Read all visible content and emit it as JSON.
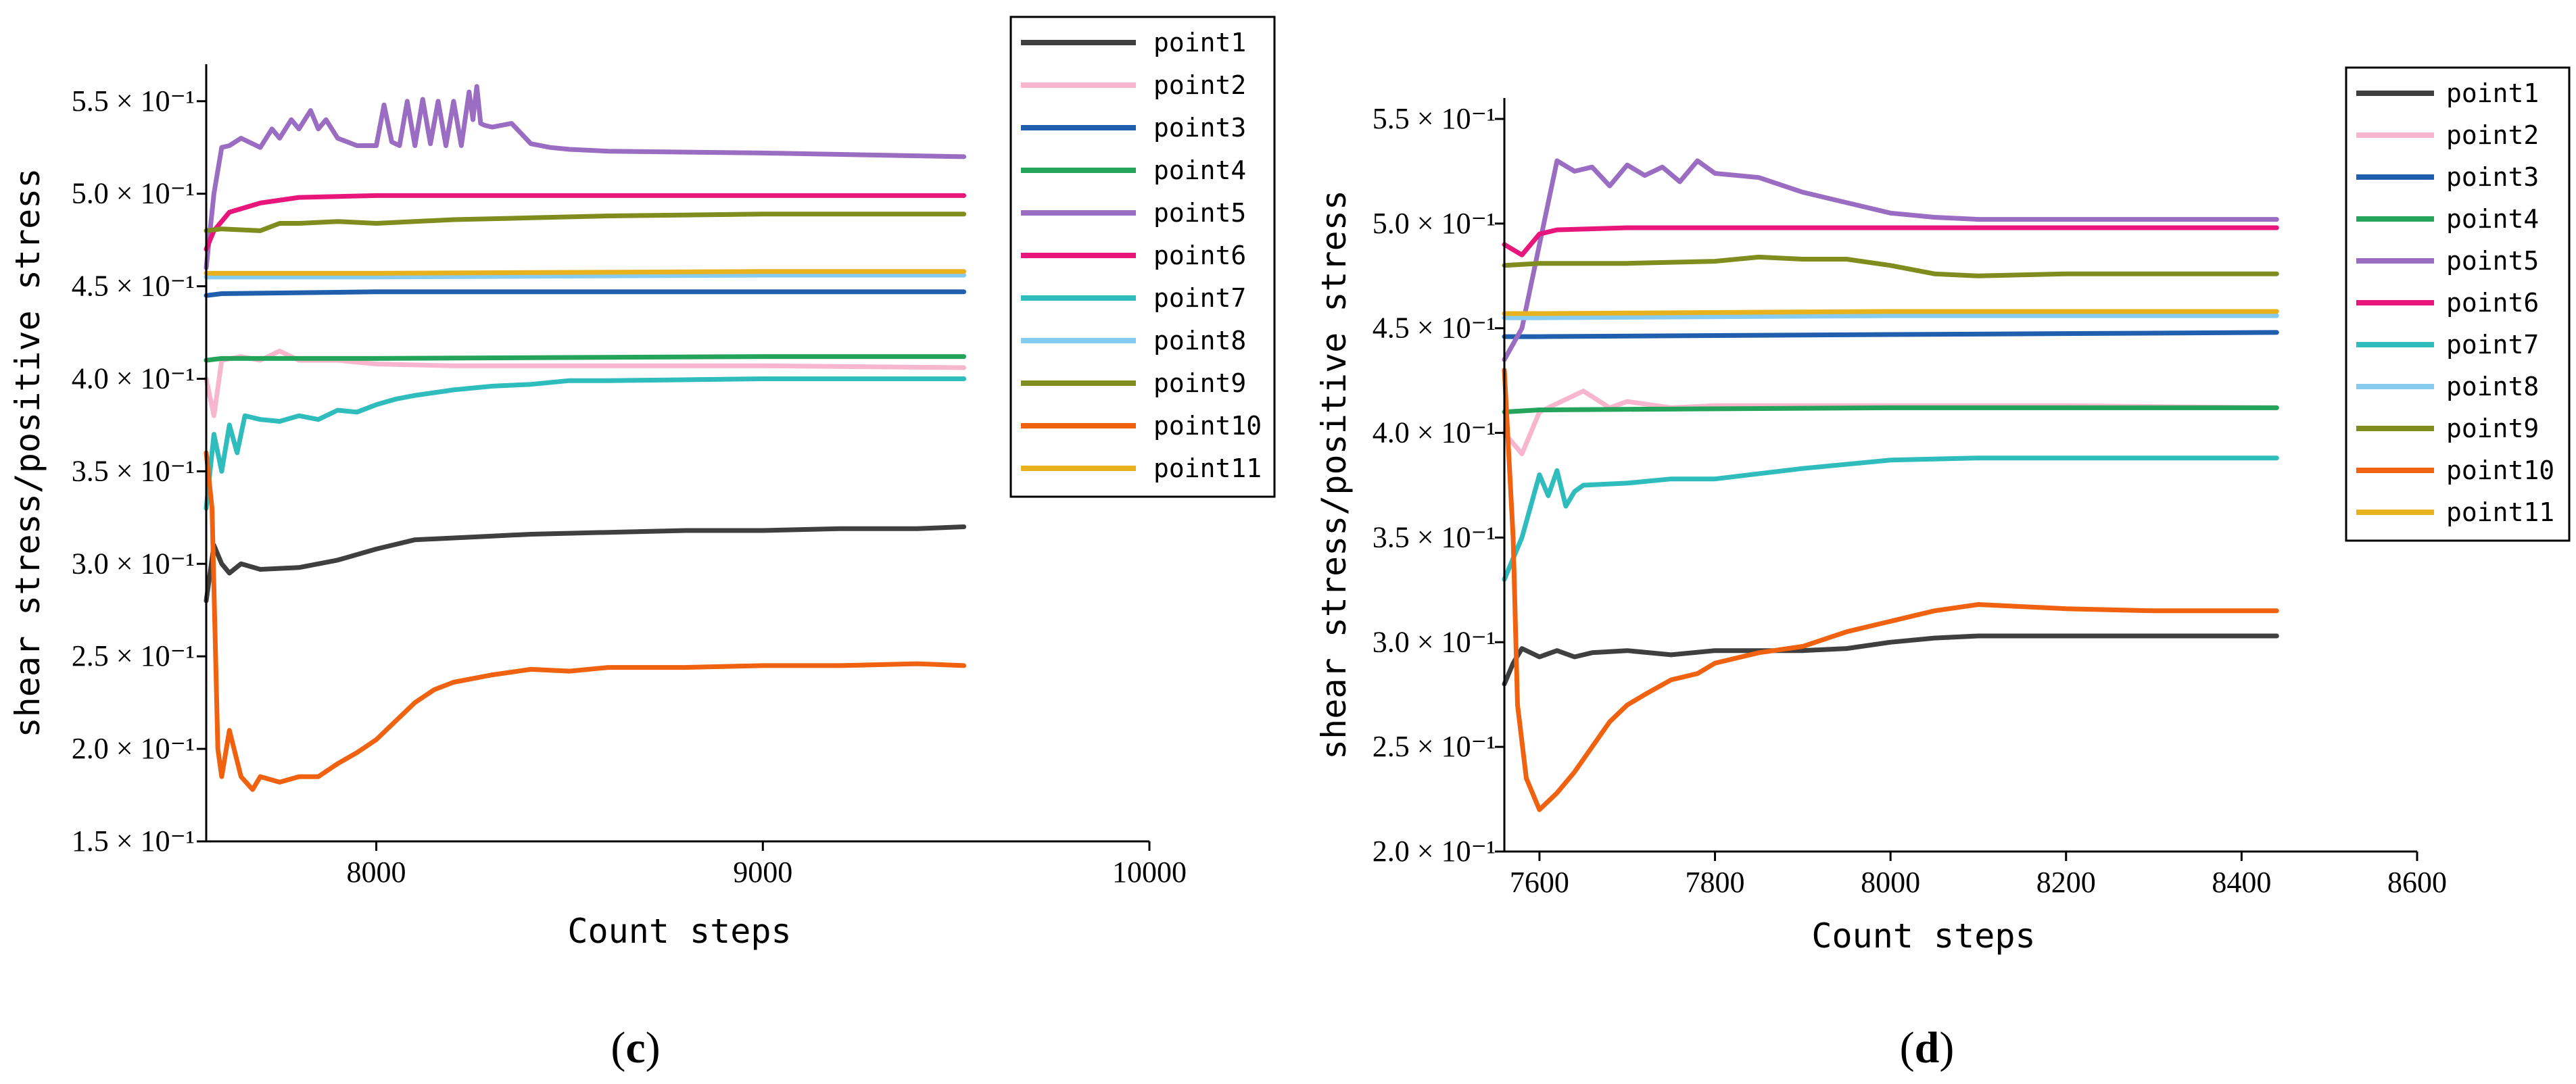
{
  "colors": {
    "point1": "#3f3f3f",
    "point2": "#f7b6cd",
    "point3": "#1f5fae",
    "point4": "#24a35a",
    "point5": "#9b6dc2",
    "point6": "#e8167a",
    "point7": "#2fbcbc",
    "point8": "#86ccf0",
    "point9": "#7f8d1f",
    "point10": "#f0620f",
    "point11": "#e8b21e"
  },
  "chart_data": [
    {
      "type": "line",
      "panel_label": {
        "open": "(",
        "letter": "c",
        "close": ")"
      },
      "xlabel": "Count steps",
      "ylabel": "shear stress/positive stress",
      "xlim": [
        7560,
        10000
      ],
      "ylim": [
        0.15,
        0.57
      ],
      "xticks": [
        8000,
        9000,
        10000
      ],
      "xtick_labels": [
        "8000",
        "9000",
        "10000"
      ],
      "yticks": [
        0.15,
        0.2,
        0.25,
        0.3,
        0.35,
        0.4,
        0.45,
        0.5,
        0.55
      ],
      "ytick_labels": [
        "1.5 × 10⁻¹",
        "2.0 × 10⁻¹",
        "2.5 × 10⁻¹",
        "3.0 × 10⁻¹",
        "3.5 × 10⁻¹",
        "4.0 × 10⁻¹",
        "4.5 × 10⁻¹",
        "5.0 × 10⁻¹",
        "5.5 × 10⁻¹"
      ],
      "legend": "top-right",
      "series": [
        {
          "name": "point1",
          "x": [
            7560,
            7580,
            7600,
            7620,
            7650,
            7700,
            7800,
            7900,
            8000,
            8100,
            8200,
            8300,
            8400,
            8600,
            8800,
            9000,
            9200,
            9400,
            9520
          ],
          "y": [
            0.28,
            0.31,
            0.3,
            0.295,
            0.3,
            0.297,
            0.298,
            0.302,
            0.308,
            0.313,
            0.314,
            0.315,
            0.316,
            0.317,
            0.318,
            0.318,
            0.319,
            0.319,
            0.32
          ]
        },
        {
          "name": "point2",
          "x": [
            7560,
            7580,
            7600,
            7650,
            7700,
            7750,
            7800,
            7900,
            8000,
            8200,
            8500,
            9000,
            9520
          ],
          "y": [
            0.4,
            0.38,
            0.41,
            0.412,
            0.41,
            0.415,
            0.41,
            0.41,
            0.408,
            0.407,
            0.407,
            0.407,
            0.406
          ]
        },
        {
          "name": "point3",
          "x": [
            7560,
            7600,
            8000,
            9000,
            9520
          ],
          "y": [
            0.445,
            0.446,
            0.447,
            0.447,
            0.447
          ]
        },
        {
          "name": "point4",
          "x": [
            7560,
            7600,
            8000,
            9000,
            9520
          ],
          "y": [
            0.41,
            0.411,
            0.411,
            0.412,
            0.412
          ]
        },
        {
          "name": "point5",
          "x": [
            7560,
            7580,
            7600,
            7620,
            7650,
            7700,
            7730,
            7750,
            7780,
            7800,
            7830,
            7850,
            7870,
            7900,
            7950,
            8000,
            8020,
            8040,
            8060,
            8080,
            8100,
            8120,
            8140,
            8160,
            8180,
            8200,
            8220,
            8240,
            8250,
            8260,
            8270,
            8280,
            8300,
            8350,
            8400,
            8450,
            8500,
            8600,
            9000,
            9520
          ],
          "y": [
            0.46,
            0.5,
            0.525,
            0.526,
            0.53,
            0.525,
            0.535,
            0.53,
            0.54,
            0.535,
            0.545,
            0.535,
            0.54,
            0.53,
            0.526,
            0.526,
            0.548,
            0.528,
            0.526,
            0.55,
            0.526,
            0.551,
            0.527,
            0.55,
            0.526,
            0.55,
            0.526,
            0.555,
            0.54,
            0.558,
            0.538,
            0.537,
            0.536,
            0.538,
            0.527,
            0.525,
            0.524,
            0.523,
            0.522,
            0.52
          ]
        },
        {
          "name": "point6",
          "x": [
            7560,
            7580,
            7620,
            7700,
            7800,
            8000,
            8500,
            9000,
            9520
          ],
          "y": [
            0.47,
            0.48,
            0.49,
            0.495,
            0.498,
            0.499,
            0.499,
            0.499,
            0.499
          ]
        },
        {
          "name": "point7",
          "x": [
            7560,
            7580,
            7600,
            7620,
            7640,
            7660,
            7700,
            7750,
            7800,
            7850,
            7900,
            7950,
            8000,
            8050,
            8100,
            8200,
            8300,
            8400,
            8500,
            8600,
            9000,
            9520
          ],
          "y": [
            0.33,
            0.37,
            0.35,
            0.375,
            0.36,
            0.38,
            0.378,
            0.377,
            0.38,
            0.378,
            0.383,
            0.382,
            0.386,
            0.389,
            0.391,
            0.394,
            0.396,
            0.397,
            0.399,
            0.399,
            0.4,
            0.4
          ]
        },
        {
          "name": "point8",
          "x": [
            7560,
            7600,
            8000,
            9000,
            9520
          ],
          "y": [
            0.455,
            0.455,
            0.455,
            0.456,
            0.456
          ]
        },
        {
          "name": "point9",
          "x": [
            7560,
            7600,
            7700,
            7750,
            7800,
            7900,
            8000,
            8200,
            8400,
            8600,
            9000,
            9520
          ],
          "y": [
            0.48,
            0.481,
            0.48,
            0.484,
            0.484,
            0.485,
            0.484,
            0.486,
            0.487,
            0.488,
            0.489,
            0.489
          ]
        },
        {
          "name": "point10",
          "x": [
            7560,
            7575,
            7590,
            7600,
            7620,
            7650,
            7680,
            7700,
            7750,
            7800,
            7850,
            7900,
            7950,
            8000,
            8050,
            8100,
            8150,
            8200,
            8300,
            8400,
            8500,
            8600,
            8800,
            9000,
            9200,
            9400,
            9520
          ],
          "y": [
            0.36,
            0.33,
            0.2,
            0.185,
            0.21,
            0.185,
            0.178,
            0.185,
            0.182,
            0.185,
            0.185,
            0.192,
            0.198,
            0.205,
            0.215,
            0.225,
            0.232,
            0.236,
            0.24,
            0.243,
            0.242,
            0.244,
            0.244,
            0.245,
            0.245,
            0.246,
            0.245
          ]
        },
        {
          "name": "point11",
          "x": [
            7560,
            7600,
            8000,
            9000,
            9520
          ],
          "y": [
            0.457,
            0.457,
            0.457,
            0.458,
            0.458
          ]
        }
      ]
    },
    {
      "type": "line",
      "panel_label": {
        "open": "(",
        "letter": "d",
        "close": ")"
      },
      "xlabel": "Count steps",
      "ylabel": "shear stress/positive stress",
      "xlim": [
        7560,
        8600
      ],
      "ylim": [
        0.2,
        0.56
      ],
      "xticks": [
        7600,
        7800,
        8000,
        8200,
        8400,
        8600
      ],
      "xtick_labels": [
        "7600",
        "7800",
        "8000",
        "8200",
        "8400",
        "8600"
      ],
      "yticks": [
        0.2,
        0.25,
        0.3,
        0.35,
        0.4,
        0.45,
        0.5,
        0.55
      ],
      "ytick_labels": [
        "2.0 × 10⁻¹",
        "2.5 × 10⁻¹",
        "3.0 × 10⁻¹",
        "3.5 × 10⁻¹",
        "4.0 × 10⁻¹",
        "4.5 × 10⁻¹",
        "5.0 × 10⁻¹",
        "5.5 × 10⁻¹"
      ],
      "legend": "top-right",
      "series": [
        {
          "name": "point1",
          "x": [
            7560,
            7570,
            7580,
            7600,
            7620,
            7640,
            7660,
            7700,
            7750,
            7800,
            7900,
            7950,
            8000,
            8050,
            8100,
            8200,
            8300,
            8440
          ],
          "y": [
            0.28,
            0.29,
            0.297,
            0.293,
            0.296,
            0.293,
            0.295,
            0.296,
            0.294,
            0.296,
            0.296,
            0.297,
            0.3,
            0.302,
            0.303,
            0.303,
            0.303,
            0.303
          ]
        },
        {
          "name": "point2",
          "x": [
            7560,
            7580,
            7600,
            7620,
            7650,
            7680,
            7700,
            7750,
            7800,
            7900,
            8000,
            8200,
            8440
          ],
          "y": [
            0.4,
            0.39,
            0.41,
            0.414,
            0.42,
            0.412,
            0.415,
            0.412,
            0.413,
            0.413,
            0.413,
            0.413,
            0.412
          ]
        },
        {
          "name": "point3",
          "x": [
            7560,
            7600,
            8000,
            8440
          ],
          "y": [
            0.446,
            0.446,
            0.447,
            0.448
          ]
        },
        {
          "name": "point4",
          "x": [
            7560,
            7600,
            8000,
            8440
          ],
          "y": [
            0.41,
            0.411,
            0.412,
            0.412
          ]
        },
        {
          "name": "point5",
          "x": [
            7560,
            7580,
            7600,
            7620,
            7640,
            7660,
            7680,
            7700,
            7720,
            7740,
            7760,
            7780,
            7800,
            7850,
            7900,
            7950,
            8000,
            8050,
            8100,
            8200,
            8300,
            8440
          ],
          "y": [
            0.435,
            0.45,
            0.49,
            0.53,
            0.525,
            0.527,
            0.518,
            0.528,
            0.523,
            0.527,
            0.52,
            0.53,
            0.524,
            0.522,
            0.515,
            0.51,
            0.505,
            0.503,
            0.502,
            0.502,
            0.502,
            0.502
          ]
        },
        {
          "name": "point6",
          "x": [
            7560,
            7580,
            7600,
            7620,
            7700,
            8000,
            8440
          ],
          "y": [
            0.49,
            0.485,
            0.495,
            0.497,
            0.498,
            0.498,
            0.498
          ]
        },
        {
          "name": "point7",
          "x": [
            7560,
            7580,
            7600,
            7610,
            7620,
            7630,
            7640,
            7650,
            7700,
            7750,
            7800,
            7900,
            8000,
            8100,
            8200,
            8300,
            8440
          ],
          "y": [
            0.33,
            0.35,
            0.38,
            0.37,
            0.382,
            0.365,
            0.372,
            0.375,
            0.376,
            0.378,
            0.378,
            0.383,
            0.387,
            0.388,
            0.388,
            0.388,
            0.388
          ]
        },
        {
          "name": "point8",
          "x": [
            7560,
            7600,
            8000,
            8440
          ],
          "y": [
            0.455,
            0.455,
            0.456,
            0.456
          ]
        },
        {
          "name": "point9",
          "x": [
            7560,
            7600,
            7700,
            7800,
            7850,
            7900,
            7950,
            8000,
            8050,
            8100,
            8200,
            8300,
            8440
          ],
          "y": [
            0.48,
            0.481,
            0.481,
            0.482,
            0.484,
            0.483,
            0.483,
            0.48,
            0.476,
            0.475,
            0.476,
            0.476,
            0.476
          ]
        },
        {
          "name": "point10",
          "x": [
            7560,
            7570,
            7575,
            7585,
            7600,
            7620,
            7640,
            7660,
            7680,
            7700,
            7720,
            7750,
            7780,
            7800,
            7850,
            7900,
            7950,
            8000,
            8050,
            8100,
            8150,
            8200,
            8300,
            8440
          ],
          "y": [
            0.43,
            0.35,
            0.27,
            0.235,
            0.22,
            0.228,
            0.238,
            0.25,
            0.262,
            0.27,
            0.275,
            0.282,
            0.285,
            0.29,
            0.295,
            0.298,
            0.305,
            0.31,
            0.315,
            0.318,
            0.317,
            0.316,
            0.315,
            0.315
          ]
        },
        {
          "name": "point11",
          "x": [
            7560,
            7600,
            8000,
            8440
          ],
          "y": [
            0.457,
            0.457,
            0.458,
            0.458
          ]
        }
      ]
    }
  ]
}
